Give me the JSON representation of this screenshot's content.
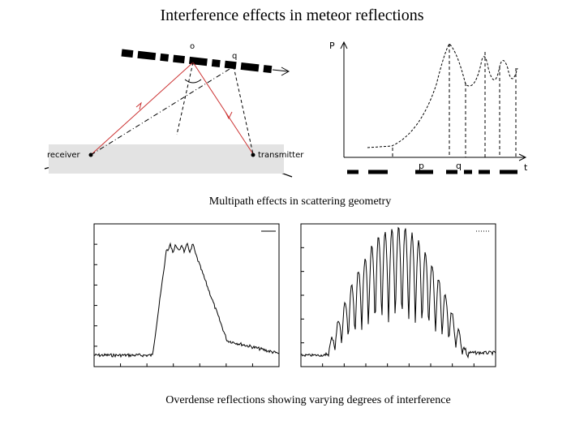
{
  "title": "Interference effects in meteor reflections",
  "caption_geometry": "Multipath effects in scattering geometry",
  "caption_observed": "Overdense reflections showing varying degrees of interference",
  "geometry": {
    "point_o": "o",
    "point_q": "q",
    "receiver_label": "receiver",
    "transmitter_label": "transmitter"
  },
  "power_plot": {
    "y_label": "P",
    "x_label": "t",
    "marker_p": "p",
    "marker_q": "q"
  },
  "chart_data": [
    {
      "type": "line",
      "title": "",
      "legend": "",
      "x_ticks": [
        "",
        "",
        "",
        "",
        "",
        "",
        "",
        ""
      ],
      "y_ticks": [
        "",
        "",
        "",
        "",
        "",
        "",
        "",
        ""
      ],
      "shape": "single smooth hump, small ripples near top, slow decay"
    },
    {
      "type": "line",
      "title": "",
      "legend": "",
      "x_ticks": [
        "",
        "",
        "",
        "",
        "",
        "",
        "",
        "",
        "",
        ""
      ],
      "y_ticks": [
        "",
        "",
        "",
        "",
        "",
        "",
        ""
      ],
      "shape": "strong interference fringes under broad envelope"
    }
  ],
  "colors": {
    "ray_red": "#cc3333",
    "ink": "#000000"
  }
}
